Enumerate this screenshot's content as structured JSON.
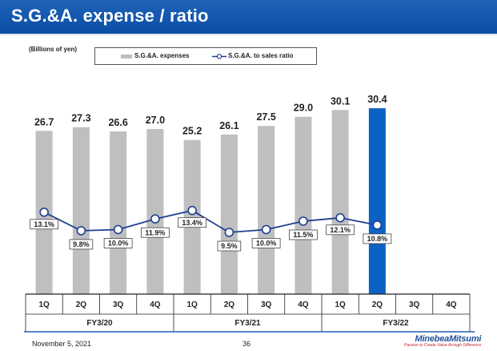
{
  "header": {
    "title": "S.G.&A. expense / ratio"
  },
  "footer": {
    "date": "November 5, 2021",
    "page": "36",
    "logo_name": "MinebeaMitsumi",
    "logo_tagline": "Passion to Create Value through Difference"
  },
  "chart_data": {
    "type": "bar",
    "unit_label": "(Billions of yen)",
    "categories": [
      "1Q",
      "2Q",
      "3Q",
      "4Q",
      "1Q",
      "2Q",
      "3Q",
      "4Q",
      "1Q",
      "2Q",
      "3Q",
      "4Q"
    ],
    "groups": [
      {
        "label": "FY3/20",
        "span": 4
      },
      {
        "label": "FY3/21",
        "span": 4
      },
      {
        "label": "FY3/22",
        "span": 4
      }
    ],
    "series": [
      {
        "name": "S.G.&A. expenses",
        "type": "bar",
        "values": [
          26.7,
          27.3,
          26.6,
          27.0,
          25.2,
          26.1,
          27.5,
          29.0,
          30.1,
          30.4,
          null,
          null
        ],
        "labels": [
          "26.7",
          "27.3",
          "26.6",
          "27.0",
          "25.2",
          "26.1",
          "27.5",
          "29.0",
          "30.1",
          "30.4",
          "",
          ""
        ],
        "color": "#bfbfbf",
        "highlight_index": 9,
        "highlight_color": "#0a63c2"
      },
      {
        "name": "S.G.&A. to sales ratio",
        "type": "line",
        "values": [
          13.1,
          9.8,
          10.0,
          11.9,
          13.4,
          9.5,
          10.0,
          11.5,
          12.1,
          10.8,
          null,
          null
        ],
        "labels": [
          "13.1%",
          "9.8%",
          "10.0%",
          "11.9%",
          "13.4%",
          "9.5%",
          "10.0%",
          "11.5%",
          "12.1%",
          "10.8%",
          "",
          ""
        ],
        "color": "#1f3f8f"
      }
    ],
    "grid": false,
    "legend_position": "top"
  }
}
